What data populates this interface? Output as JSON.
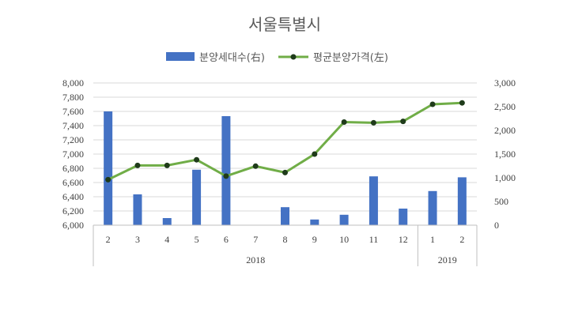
{
  "chart_data": {
    "type": "bar+line",
    "title": "서울특별시",
    "categories": [
      "2",
      "3",
      "4",
      "5",
      "6",
      "7",
      "8",
      "9",
      "10",
      "11",
      "12",
      "1",
      "2"
    ],
    "year_groups": [
      {
        "label": "2018",
        "start": 0,
        "end": 10
      },
      {
        "label": "2019",
        "start": 11,
        "end": 12
      }
    ],
    "series": [
      {
        "name": "분양세대수(右)",
        "type": "bar",
        "axis": "right",
        "color": "#4472c4",
        "values": [
          2400,
          650,
          150,
          1170,
          2300,
          0,
          380,
          120,
          220,
          1030,
          350,
          720,
          1010
        ]
      },
      {
        "name": "평균분양가격(左)",
        "type": "line",
        "axis": "left",
        "color": "#70ad47",
        "marker_color": "#1f3b1a",
        "values": [
          6640,
          6840,
          6840,
          6920,
          6690,
          6830,
          6740,
          7000,
          7450,
          7440,
          7460,
          7700,
          7720
        ]
      }
    ],
    "y_left": {
      "min": 6000,
      "max": 8000,
      "step": 200,
      "ticks": [
        "6,000",
        "6,200",
        "6,400",
        "6,600",
        "6,800",
        "7,000",
        "7,200",
        "7,400",
        "7,600",
        "7,800",
        "8,000"
      ]
    },
    "y_right": {
      "min": 0,
      "max": 3000,
      "step": 500,
      "ticks": [
        "0",
        "500",
        "1,000",
        "1,500",
        "2,000",
        "2,500",
        "3,000"
      ]
    },
    "grid": true,
    "legend_position": "top-center"
  }
}
